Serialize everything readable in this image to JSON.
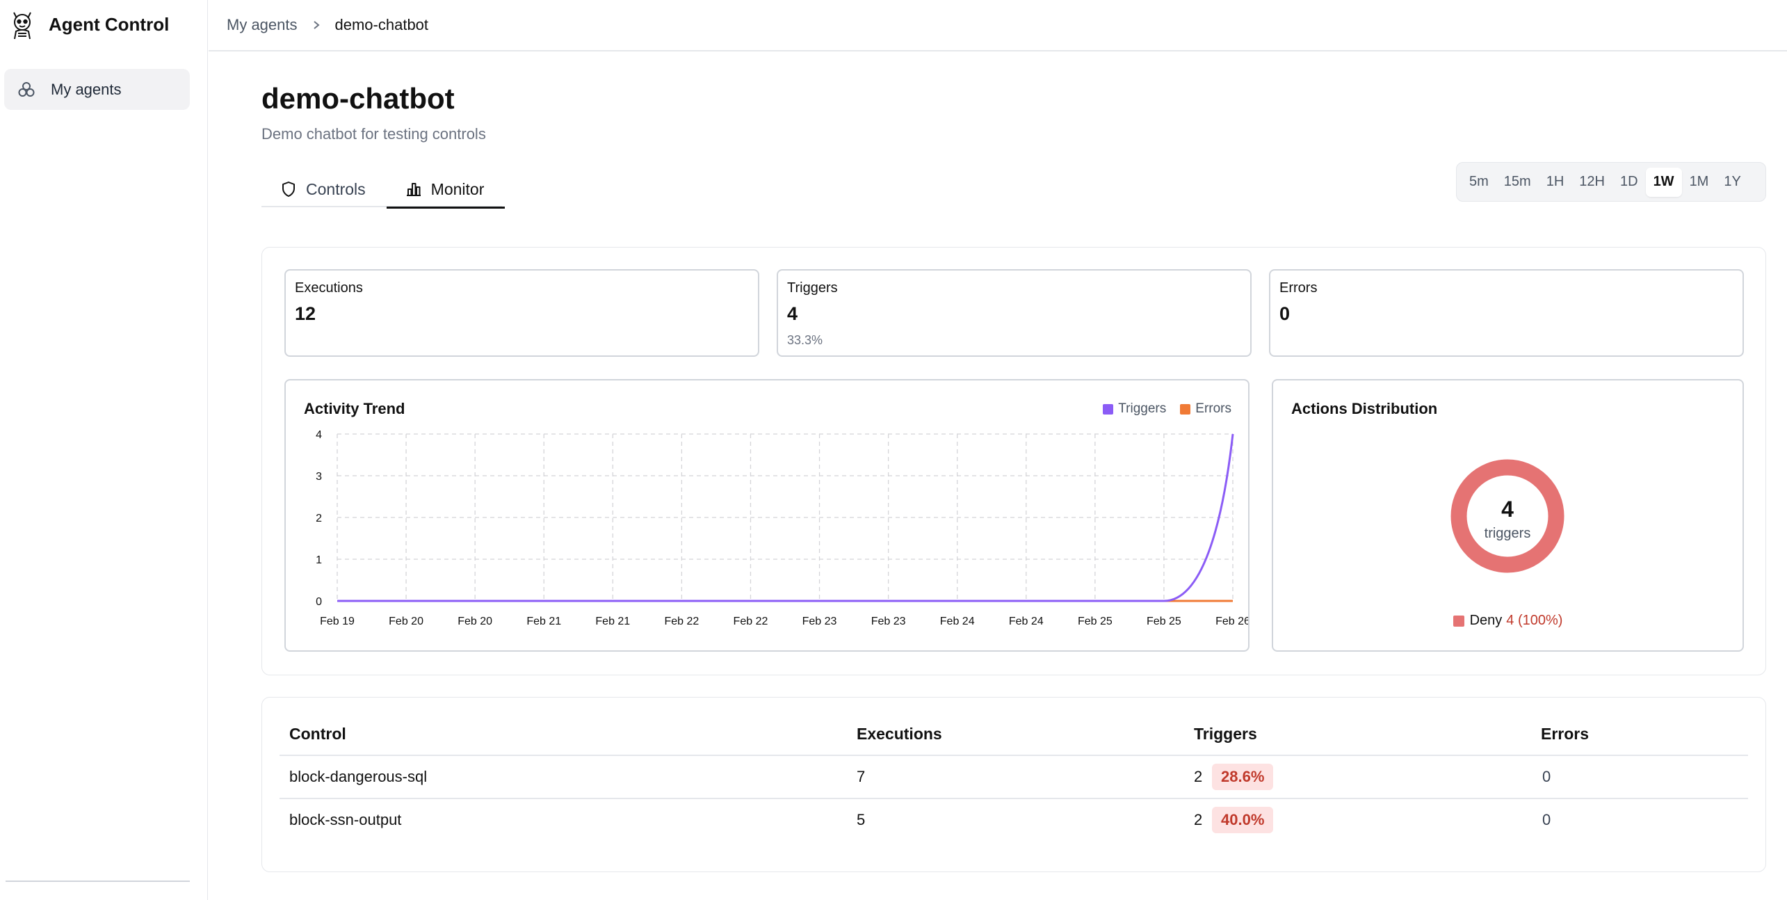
{
  "app": {
    "title": "Agent Control"
  },
  "sidebar": {
    "items": [
      {
        "label": "My agents",
        "icon": "agents-icon"
      }
    ]
  },
  "breadcrumb": {
    "parent": "My agents",
    "current": "demo-chatbot"
  },
  "agent": {
    "name": "demo-chatbot",
    "description": "Demo chatbot for testing controls"
  },
  "tabs": [
    {
      "label": "Controls",
      "icon": "shield-icon",
      "active": false
    },
    {
      "label": "Monitor",
      "icon": "bar-chart-icon",
      "active": true
    }
  ],
  "time_range": {
    "options": [
      "5m",
      "15m",
      "1H",
      "12H",
      "1D",
      "1W",
      "1M",
      "1Y"
    ],
    "selected": "1W"
  },
  "stats": {
    "executions": {
      "label": "Executions",
      "value": "12"
    },
    "triggers": {
      "label": "Triggers",
      "value": "4",
      "rate": "33.3%"
    },
    "errors": {
      "label": "Errors",
      "value": "0"
    }
  },
  "colors": {
    "triggers": "#8b5cf6",
    "errors": "#f07a35",
    "deny": "#e57373",
    "badge_bg": "#fde2e2",
    "badge_text": "#c0392b"
  },
  "activity": {
    "title": "Activity Trend",
    "legend": {
      "triggers": "Triggers",
      "errors": "Errors"
    }
  },
  "chart_data": {
    "type": "line",
    "title": "Activity Trend",
    "x": [
      "Feb 19",
      "Feb 20",
      "Feb 20",
      "Feb 21",
      "Feb 21",
      "Feb 22",
      "Feb 22",
      "Feb 23",
      "Feb 23",
      "Feb 24",
      "Feb 24",
      "Feb 25",
      "Feb 25",
      "Feb 26"
    ],
    "series": [
      {
        "name": "Triggers",
        "values": [
          0,
          0,
          0,
          0,
          0,
          0,
          0,
          0,
          0,
          0,
          0,
          0,
          0,
          4
        ]
      },
      {
        "name": "Errors",
        "values": [
          0,
          0,
          0,
          0,
          0,
          0,
          0,
          0,
          0,
          0,
          0,
          0,
          0,
          0
        ]
      }
    ],
    "yticks": [
      0,
      1,
      2,
      3,
      4
    ],
    "ylim": [
      0,
      4
    ],
    "grid": true,
    "legend": "top-right"
  },
  "distribution": {
    "title": "Actions Distribution",
    "total": "4",
    "total_label": "triggers",
    "items": [
      {
        "name": "Deny",
        "value": "4 (100%)",
        "fraction": 1.0
      }
    ]
  },
  "table": {
    "headers": {
      "control": "Control",
      "executions": "Executions",
      "triggers": "Triggers",
      "errors": "Errors"
    },
    "rows": [
      {
        "control": "block-dangerous-sql",
        "executions": "7",
        "triggers": "2",
        "trigger_rate": "28.6%",
        "errors": "0"
      },
      {
        "control": "block-ssn-output",
        "executions": "5",
        "triggers": "2",
        "trigger_rate": "40.0%",
        "errors": "0"
      }
    ]
  }
}
